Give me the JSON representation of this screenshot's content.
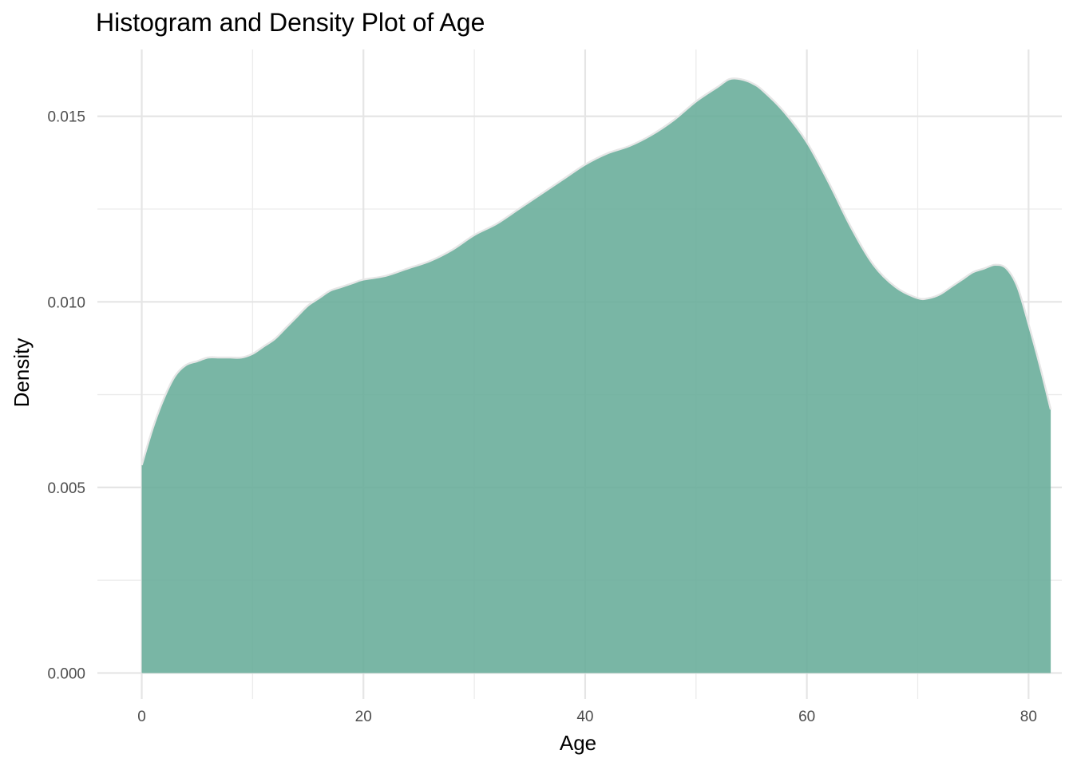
{
  "chart_data": {
    "type": "area",
    "title": "Histogram and Density Plot of Age",
    "xlabel": "Age",
    "ylabel": "Density",
    "xlim": [
      -4,
      83
    ],
    "ylim": [
      -0.0007,
      0.0168
    ],
    "x_ticks": [
      0,
      20,
      40,
      60,
      80
    ],
    "x_tick_labels": [
      "0",
      "20",
      "40",
      "60",
      "80"
    ],
    "y_ticks": [
      0.0,
      0.005,
      0.01,
      0.015
    ],
    "y_tick_labels": [
      "0.000",
      "0.005",
      "0.010",
      "0.015"
    ],
    "x_minor_ticks": [
      10,
      30,
      50,
      70
    ],
    "y_minor_ticks": [
      0.0025,
      0.0075,
      0.0125
    ],
    "grid": true,
    "legend": "none",
    "colors": {
      "fill": "#66ac98",
      "outline": "#e6e6e6",
      "grid_major": "#e5e5e5",
      "grid_minor": "#ececec"
    },
    "series": [
      {
        "x": [
          0,
          1,
          2,
          3,
          4,
          5,
          6,
          7,
          8,
          9,
          10,
          11,
          12,
          13,
          14,
          15,
          16,
          17,
          18,
          19,
          20,
          22,
          24,
          26,
          28,
          30,
          32,
          34,
          36,
          38,
          40,
          42,
          44,
          46,
          48,
          50,
          52,
          53,
          54,
          55,
          56,
          58,
          60,
          62,
          64,
          66,
          68,
          70,
          71,
          72,
          73,
          74,
          75,
          76,
          77,
          78,
          79,
          80,
          81,
          82
        ],
        "y": [
          0.0056,
          0.0066,
          0.0074,
          0.008,
          0.0083,
          0.0084,
          0.0085,
          0.0085,
          0.0085,
          0.0085,
          0.0086,
          0.0088,
          0.009,
          0.0093,
          0.0096,
          0.0099,
          0.0101,
          0.0103,
          0.0104,
          0.0105,
          0.0106,
          0.0107,
          0.0109,
          0.0111,
          0.0114,
          0.0118,
          0.0121,
          0.0125,
          0.0129,
          0.0133,
          0.0137,
          0.014,
          0.0142,
          0.0145,
          0.0149,
          0.0154,
          0.0158,
          0.016,
          0.016,
          0.0159,
          0.0157,
          0.0151,
          0.0143,
          0.0132,
          0.012,
          0.011,
          0.0104,
          0.0101,
          0.0101,
          0.0102,
          0.0104,
          0.0106,
          0.0108,
          0.0109,
          0.011,
          0.0109,
          0.0104,
          0.0094,
          0.0083,
          0.0071
        ]
      }
    ]
  }
}
